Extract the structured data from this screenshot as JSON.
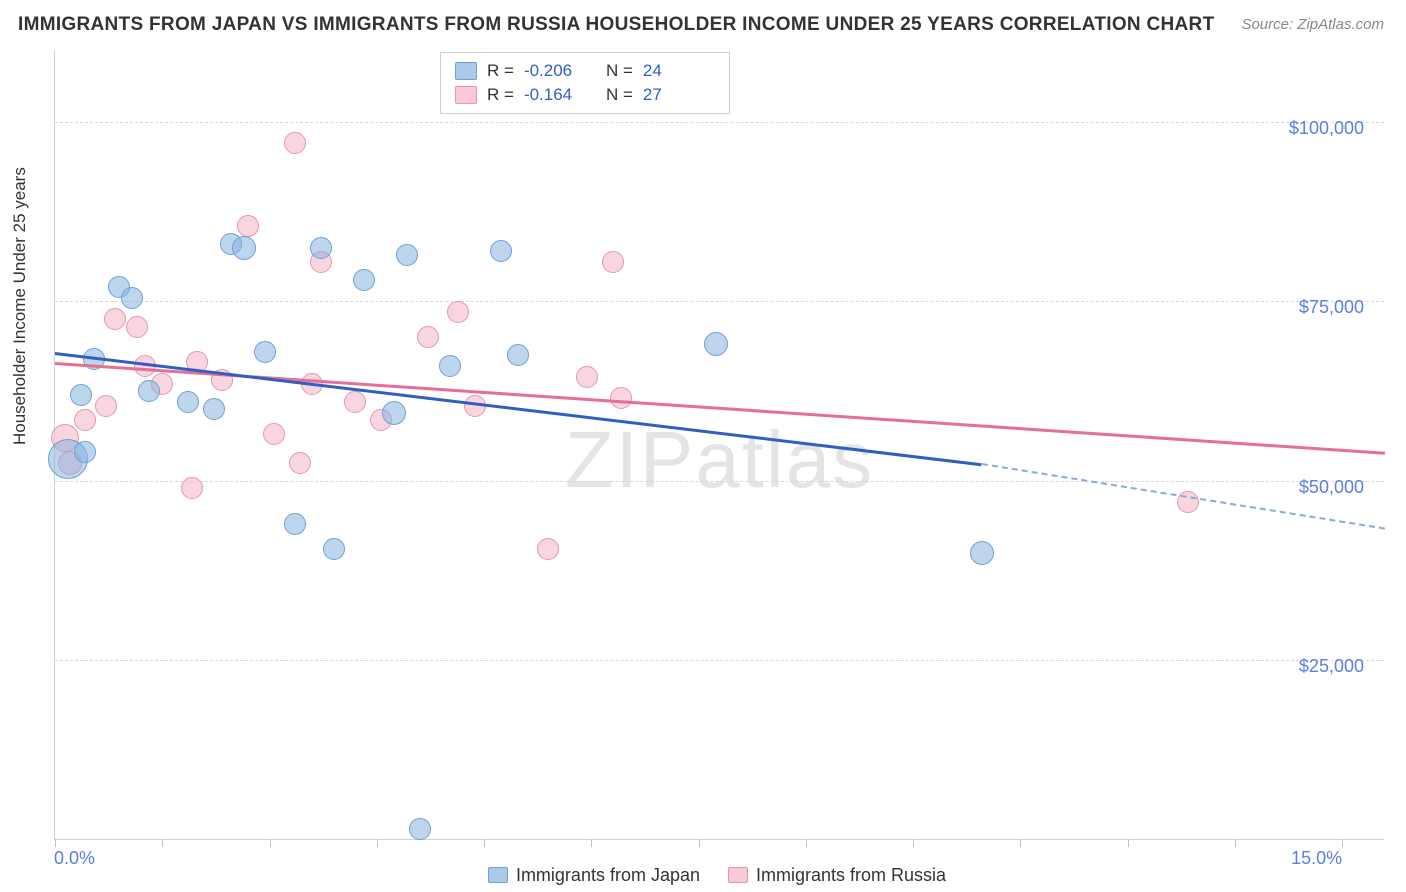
{
  "title": "IMMIGRANTS FROM JAPAN VS IMMIGRANTS FROM RUSSIA HOUSEHOLDER INCOME UNDER 25 YEARS CORRELATION CHART",
  "source": "Source: ZipAtlas.com",
  "watermark": "ZIPatlas",
  "y_axis_title": "Householder Income Under 25 years",
  "chart": {
    "type": "scatter-correlation",
    "background_color": "#ffffff",
    "grid_color": "#d8d8d8",
    "axis_color": "#d0d0d0",
    "xlim": [
      0.0,
      15.5
    ],
    "ylim": [
      0,
      110000
    ],
    "y_gridlines": [
      25000,
      50000,
      75000,
      100000
    ],
    "y_tick_labels": {
      "25000": "$25,000",
      "50000": "$50,000",
      "75000": "$75,000",
      "100000": "$100,000"
    },
    "x_ticks": [
      0.0,
      1.25,
      2.5,
      3.75,
      5.0,
      6.25,
      7.5,
      8.75,
      10.0,
      11.25,
      12.5,
      13.75,
      15.0
    ],
    "x_tick_labels": {
      "0.0": "0.0%",
      "15.0": "15.0%"
    },
    "label_color": "#5b7ee5",
    "label_fontsize": 18,
    "title_fontsize": 19,
    "series": [
      {
        "name": "Immigrants from Japan",
        "point_fill": "#89b2e0",
        "point_stroke": "#6f9fd6",
        "point_opacity": 0.55,
        "trend_color": "#2f5fc1",
        "trend_dash_color": "#8aa8e0",
        "R": "-0.206",
        "N": "24",
        "base_radius": 11,
        "points": [
          {
            "x": 0.15,
            "y": 53000,
            "r": 20
          },
          {
            "x": 0.3,
            "y": 62000,
            "r": 11
          },
          {
            "x": 0.35,
            "y": 54000,
            "r": 11
          },
          {
            "x": 0.45,
            "y": 67000,
            "r": 11
          },
          {
            "x": 0.75,
            "y": 77000,
            "r": 11
          },
          {
            "x": 0.9,
            "y": 75500,
            "r": 11
          },
          {
            "x": 1.1,
            "y": 62500,
            "r": 11
          },
          {
            "x": 1.55,
            "y": 61000,
            "r": 11
          },
          {
            "x": 1.85,
            "y": 60000,
            "r": 11
          },
          {
            "x": 2.05,
            "y": 83000,
            "r": 11
          },
          {
            "x": 2.2,
            "y": 82500,
            "r": 12
          },
          {
            "x": 2.45,
            "y": 68000,
            "r": 11
          },
          {
            "x": 2.8,
            "y": 44000,
            "r": 11
          },
          {
            "x": 3.1,
            "y": 82500,
            "r": 11
          },
          {
            "x": 3.25,
            "y": 40500,
            "r": 11
          },
          {
            "x": 3.6,
            "y": 78000,
            "r": 11
          },
          {
            "x": 3.95,
            "y": 59500,
            "r": 12
          },
          {
            "x": 4.1,
            "y": 81500,
            "r": 11
          },
          {
            "x": 4.25,
            "y": 1500,
            "r": 11
          },
          {
            "x": 4.6,
            "y": 66000,
            "r": 11
          },
          {
            "x": 5.2,
            "y": 82000,
            "r": 11
          },
          {
            "x": 5.4,
            "y": 67500,
            "r": 11
          },
          {
            "x": 7.7,
            "y": 69000,
            "r": 12
          },
          {
            "x": 10.8,
            "y": 40000,
            "r": 12
          }
        ],
        "trend_start": {
          "x": 0.0,
          "y": 68000
        },
        "trend_solid_end": {
          "x": 10.8,
          "y": 52500
        },
        "trend_dash_end": {
          "x": 15.5,
          "y": 43500
        }
      },
      {
        "name": "Immigrants from Russia",
        "point_fill": "#f4b4c4",
        "point_stroke": "#e796ad",
        "point_opacity": 0.55,
        "trend_color": "#e66f95",
        "R": "-0.164",
        "N": "27",
        "base_radius": 11,
        "points": [
          {
            "x": 0.12,
            "y": 56000,
            "r": 14
          },
          {
            "x": 0.18,
            "y": 52500,
            "r": 12
          },
          {
            "x": 0.35,
            "y": 58500,
            "r": 11
          },
          {
            "x": 0.6,
            "y": 60500,
            "r": 11
          },
          {
            "x": 0.7,
            "y": 72500,
            "r": 11
          },
          {
            "x": 0.95,
            "y": 71500,
            "r": 11
          },
          {
            "x": 1.05,
            "y": 66000,
            "r": 11
          },
          {
            "x": 1.25,
            "y": 63500,
            "r": 11
          },
          {
            "x": 1.6,
            "y": 49000,
            "r": 11
          },
          {
            "x": 1.65,
            "y": 66500,
            "r": 11
          },
          {
            "x": 1.95,
            "y": 64000,
            "r": 11
          },
          {
            "x": 2.25,
            "y": 85500,
            "r": 11
          },
          {
            "x": 2.55,
            "y": 56500,
            "r": 11
          },
          {
            "x": 2.8,
            "y": 97000,
            "r": 11
          },
          {
            "x": 2.85,
            "y": 52500,
            "r": 11
          },
          {
            "x": 3.0,
            "y": 63500,
            "r": 11
          },
          {
            "x": 3.1,
            "y": 80500,
            "r": 11
          },
          {
            "x": 3.5,
            "y": 61000,
            "r": 11
          },
          {
            "x": 3.8,
            "y": 58500,
            "r": 11
          },
          {
            "x": 4.35,
            "y": 70000,
            "r": 11
          },
          {
            "x": 4.7,
            "y": 73500,
            "r": 11
          },
          {
            "x": 4.9,
            "y": 60500,
            "r": 11
          },
          {
            "x": 5.75,
            "y": 40500,
            "r": 11
          },
          {
            "x": 6.2,
            "y": 64500,
            "r": 11
          },
          {
            "x": 6.5,
            "y": 80500,
            "r": 11
          },
          {
            "x": 6.6,
            "y": 61500,
            "r": 11
          },
          {
            "x": 13.2,
            "y": 47000,
            "r": 11
          }
        ],
        "trend_start": {
          "x": 0.0,
          "y": 66500
        },
        "trend_solid_end": {
          "x": 15.5,
          "y": 54000
        }
      }
    ]
  },
  "legend_top": {
    "rows": [
      {
        "swatch": "blue",
        "r_label": "R =",
        "r_val": "-0.206",
        "n_label": "N =",
        "n_val": "24"
      },
      {
        "swatch": "pink",
        "r_label": "R =",
        "r_val": "-0.164",
        "n_label": "N =",
        "n_val": "27"
      }
    ]
  },
  "legend_bottom": {
    "items": [
      {
        "swatch": "blue",
        "label": "Immigrants from Japan"
      },
      {
        "swatch": "pink",
        "label": "Immigrants from Russia"
      }
    ]
  }
}
